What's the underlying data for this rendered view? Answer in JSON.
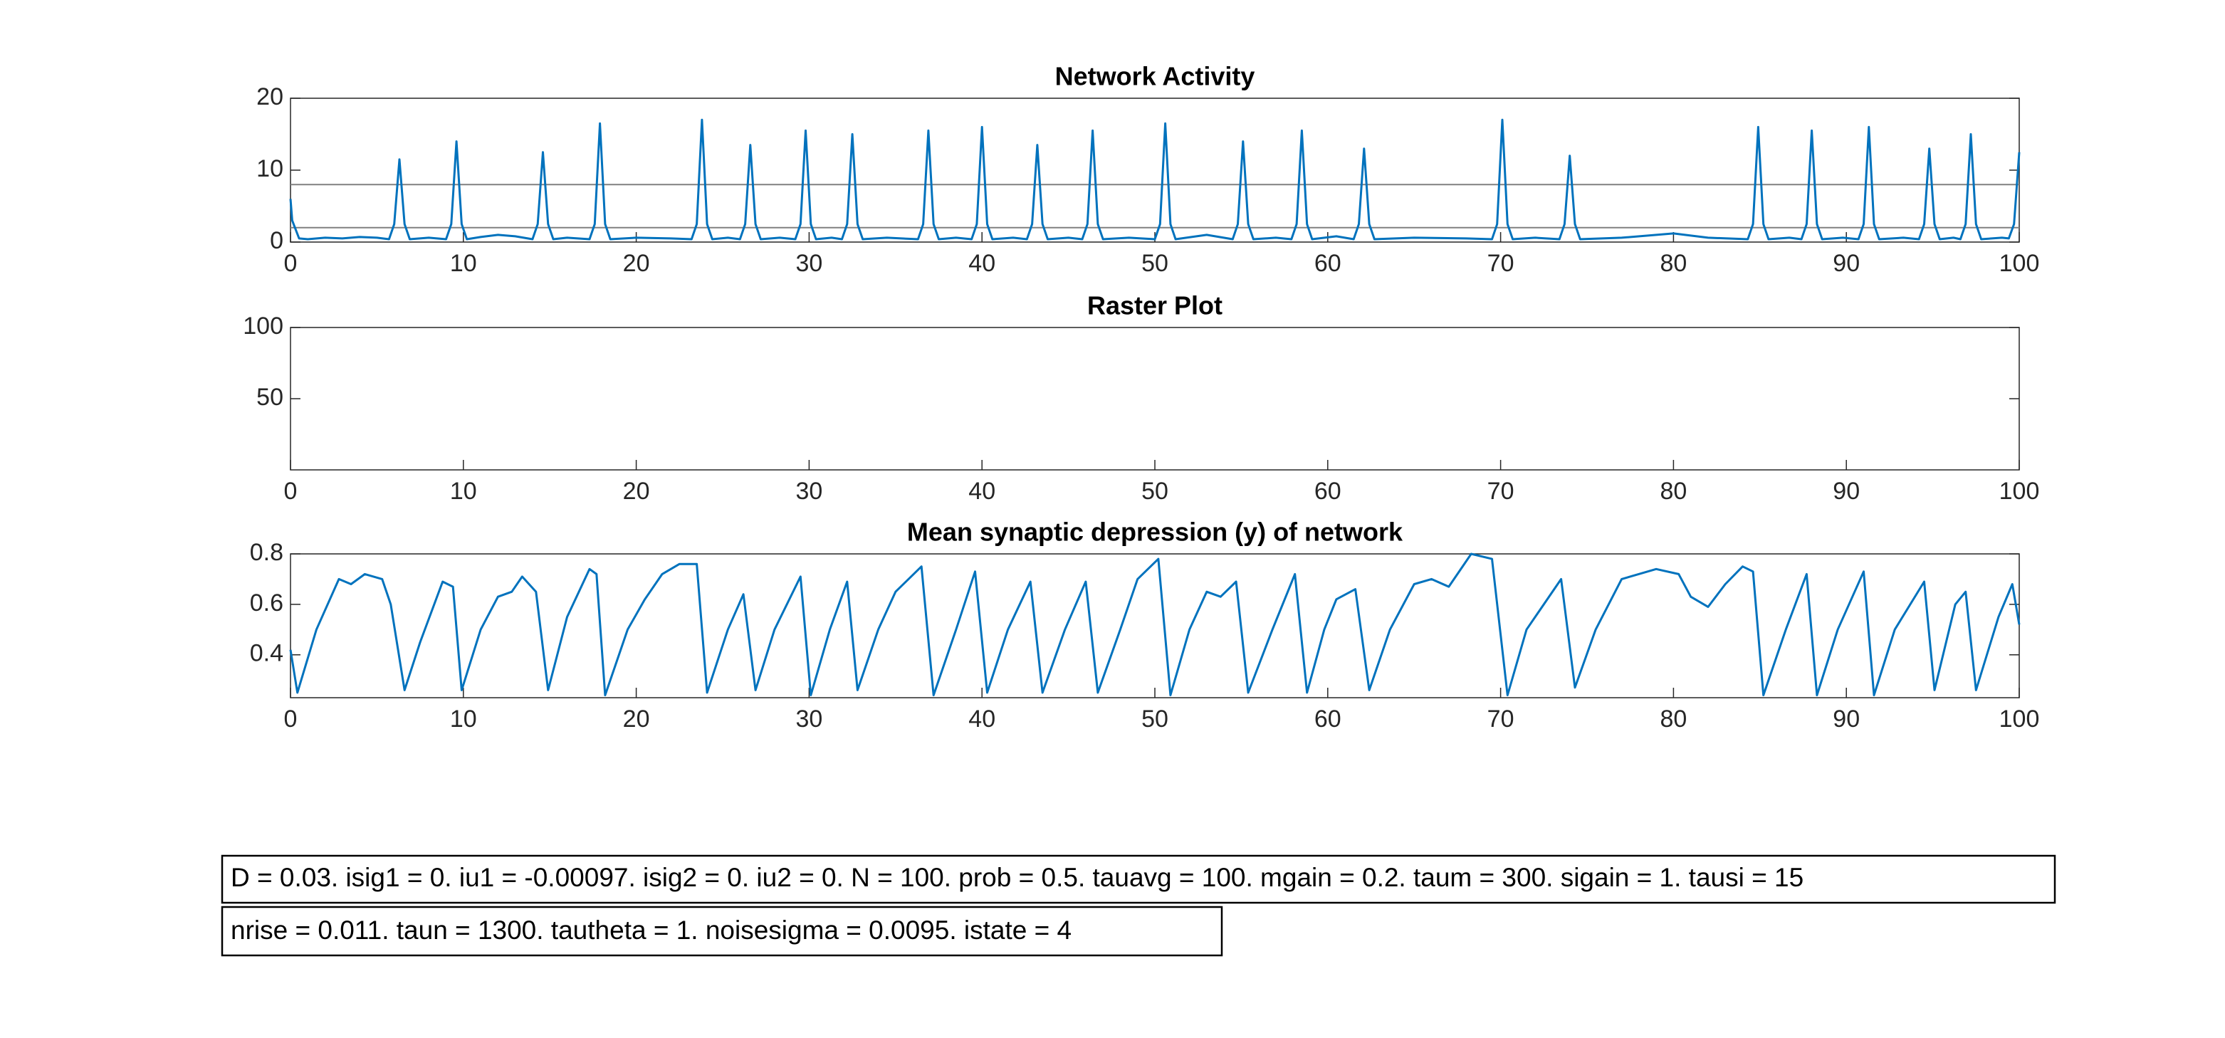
{
  "chart_data": [
    {
      "type": "line",
      "title": "Network Activity",
      "xlim": [
        0,
        100
      ],
      "xticks": [
        0,
        10,
        20,
        30,
        40,
        50,
        60,
        70,
        80,
        90,
        100
      ],
      "ylim": [
        0,
        20
      ],
      "yticks": [
        0,
        10,
        20
      ],
      "reference_lines": [
        8,
        2
      ],
      "reference_color": "#808080",
      "series": [
        {
          "color": "#0072bd",
          "x": [
            0,
            0.1,
            0.5,
            1,
            2,
            3,
            4,
            5,
            5.7,
            6,
            6.3,
            6.6,
            6.9,
            8,
            9,
            9.3,
            9.6,
            9.9,
            10.2,
            11,
            12,
            13,
            14,
            14.3,
            14.6,
            14.9,
            15.2,
            16,
            17.3,
            17.6,
            17.9,
            18.2,
            18.5,
            20,
            22,
            23.2,
            23.5,
            23.8,
            24.1,
            24.4,
            25.3,
            26,
            26.3,
            26.6,
            26.9,
            27.2,
            28.3,
            29.2,
            29.5,
            29.8,
            30.1,
            30.4,
            31.3,
            31.9,
            32.2,
            32.5,
            32.8,
            33.1,
            34.5,
            36.3,
            36.6,
            36.9,
            37.2,
            37.5,
            38.5,
            39.4,
            39.7,
            40,
            40.3,
            40.6,
            41.8,
            42.6,
            42.9,
            43.2,
            43.5,
            43.8,
            45,
            45.8,
            46.1,
            46.4,
            46.7,
            47,
            48.5,
            50,
            50.3,
            50.6,
            50.9,
            51.2,
            53,
            54.5,
            54.8,
            55.1,
            55.4,
            55.7,
            57,
            57.9,
            58.2,
            58.5,
            58.8,
            59.1,
            60.5,
            61.5,
            61.8,
            62.1,
            62.4,
            62.7,
            65,
            68,
            69.5,
            69.8,
            70.1,
            70.4,
            70.7,
            72,
            73.4,
            73.7,
            74,
            74.3,
            74.6,
            77,
            80,
            82,
            84.3,
            84.6,
            84.9,
            85.2,
            85.5,
            86.7,
            87.4,
            87.7,
            88,
            88.3,
            88.6,
            89.8,
            90.7,
            91,
            91.3,
            91.6,
            91.9,
            93.3,
            94.2,
            94.5,
            94.8,
            95.1,
            95.4,
            96.2,
            96.6,
            96.9,
            97.2,
            97.5,
            97.8,
            99,
            99.4,
            99.7,
            100
          ],
          "values": [
            6,
            3,
            0.5,
            0.4,
            0.6,
            0.5,
            0.7,
            0.6,
            0.4,
            2.5,
            11.5,
            2.5,
            0.4,
            0.6,
            0.4,
            2.5,
            14,
            2.5,
            0.4,
            0.7,
            1,
            0.8,
            0.4,
            2.5,
            12.5,
            2.5,
            0.4,
            0.6,
            0.4,
            2.5,
            16.5,
            2.5,
            0.4,
            0.6,
            0.5,
            0.4,
            2.5,
            17,
            2.5,
            0.4,
            0.6,
            0.4,
            2.5,
            13.5,
            2.5,
            0.4,
            0.6,
            0.4,
            2.5,
            15.5,
            2.5,
            0.4,
            0.6,
            0.4,
            2.5,
            15,
            2.5,
            0.4,
            0.6,
            0.4,
            2.5,
            15.5,
            2.5,
            0.4,
            0.6,
            0.4,
            2.5,
            16,
            2.5,
            0.4,
            0.6,
            0.4,
            2.5,
            13.5,
            2.5,
            0.4,
            0.6,
            0.4,
            2.5,
            15.5,
            2.5,
            0.4,
            0.6,
            0.4,
            2.5,
            16.5,
            2.5,
            0.4,
            1,
            0.4,
            2.5,
            14,
            2.5,
            0.4,
            0.6,
            0.4,
            2.5,
            15.5,
            2.5,
            0.4,
            0.8,
            0.4,
            2.5,
            13,
            2.5,
            0.4,
            0.6,
            0.5,
            0.4,
            2.5,
            17,
            2.5,
            0.4,
            0.6,
            0.4,
            2.5,
            12,
            2.5,
            0.4,
            0.6,
            1.2,
            0.6,
            0.4,
            2.5,
            16,
            2.5,
            0.4,
            0.6,
            0.4,
            2.5,
            15.5,
            2.5,
            0.4,
            0.6,
            0.4,
            2.5,
            16,
            2.5,
            0.4,
            0.6,
            0.4,
            2.5,
            13,
            2.5,
            0.4,
            0.6,
            0.4,
            2.5,
            15,
            2.5,
            0.4,
            0.6,
            0.5,
            2.5,
            12.5
          ]
        }
      ]
    },
    {
      "type": "scatter",
      "title": "Raster Plot",
      "xlim": [
        0,
        100
      ],
      "xticks": [
        0,
        10,
        20,
        30,
        40,
        50,
        60,
        70,
        80,
        90,
        100
      ],
      "ylim": [
        0,
        100
      ],
      "yticks": [
        50,
        100
      ],
      "series": []
    },
    {
      "type": "line",
      "title": "Mean synaptic depression (y) of network",
      "xlim": [
        0,
        100
      ],
      "xticks": [
        0,
        10,
        20,
        30,
        40,
        50,
        60,
        70,
        80,
        90,
        100
      ],
      "ylim": [
        0.23,
        0.8
      ],
      "yticks": [
        0.4,
        0.6,
        0.8
      ],
      "series": [
        {
          "color": "#0072bd",
          "x": [
            0,
            0.4,
            1.5,
            2.8,
            3.5,
            4.3,
            5.3,
            5.8,
            6.6,
            7.5,
            8.8,
            9.4,
            9.9,
            11,
            12,
            12.8,
            13.4,
            14.2,
            14.9,
            16,
            17.3,
            17.7,
            18.2,
            19.5,
            20.5,
            21.5,
            22.5,
            23.5,
            24.1,
            25.3,
            26.2,
            26.9,
            28,
            29.5,
            30.1,
            31.2,
            32.2,
            32.8,
            34,
            35,
            36.5,
            37.2,
            38.5,
            39.6,
            40.3,
            41.5,
            42.8,
            43.5,
            44.8,
            46,
            46.7,
            48,
            49,
            50.2,
            50.9,
            52,
            53,
            53.8,
            54.7,
            55.4,
            56.8,
            58.1,
            58.8,
            59.8,
            60.5,
            61.6,
            62.4,
            63.6,
            65,
            66,
            67,
            68.3,
            69.5,
            70.4,
            71.5,
            73.5,
            74.3,
            75.5,
            77,
            79,
            80.3,
            81,
            82,
            83,
            84,
            84.6,
            85.2,
            86.5,
            87.7,
            88.3,
            89.5,
            91,
            91.6,
            92.8,
            94.5,
            95.1,
            96.3,
            96.9,
            97.5,
            98.8,
            99.6,
            100
          ],
          "values": [
            0.42,
            0.25,
            0.5,
            0.7,
            0.68,
            0.72,
            0.7,
            0.6,
            0.26,
            0.45,
            0.69,
            0.67,
            0.26,
            0.5,
            0.63,
            0.65,
            0.71,
            0.65,
            0.26,
            0.55,
            0.74,
            0.72,
            0.24,
            0.5,
            0.62,
            0.72,
            0.76,
            0.76,
            0.25,
            0.5,
            0.64,
            0.26,
            0.5,
            0.71,
            0.24,
            0.5,
            0.69,
            0.26,
            0.5,
            0.65,
            0.75,
            0.24,
            0.5,
            0.73,
            0.25,
            0.5,
            0.69,
            0.25,
            0.5,
            0.69,
            0.25,
            0.5,
            0.7,
            0.78,
            0.24,
            0.5,
            0.65,
            0.63,
            0.69,
            0.25,
            0.5,
            0.72,
            0.25,
            0.5,
            0.62,
            0.66,
            0.26,
            0.5,
            0.68,
            0.7,
            0.67,
            0.8,
            0.78,
            0.24,
            0.5,
            0.7,
            0.27,
            0.5,
            0.7,
            0.74,
            0.72,
            0.63,
            0.59,
            0.68,
            0.75,
            0.73,
            0.24,
            0.5,
            0.72,
            0.24,
            0.5,
            0.73,
            0.24,
            0.5,
            0.69,
            0.26,
            0.6,
            0.65,
            0.26,
            0.55,
            0.68,
            0.52
          ]
        }
      ]
    }
  ],
  "annotations": [
    "D = 0.03. isig1 = 0. iu1 = -0.00097. isig2 = 0. iu2 = 0. N = 100. prob = 0.5. tauavg = 100. mgain = 0.2. taum = 300. sigain = 1. tausi = 15",
    "nrise = 0.011. taun = 1300. tautheta = 1. noisesigma = 0.0095. istate = 4"
  ]
}
